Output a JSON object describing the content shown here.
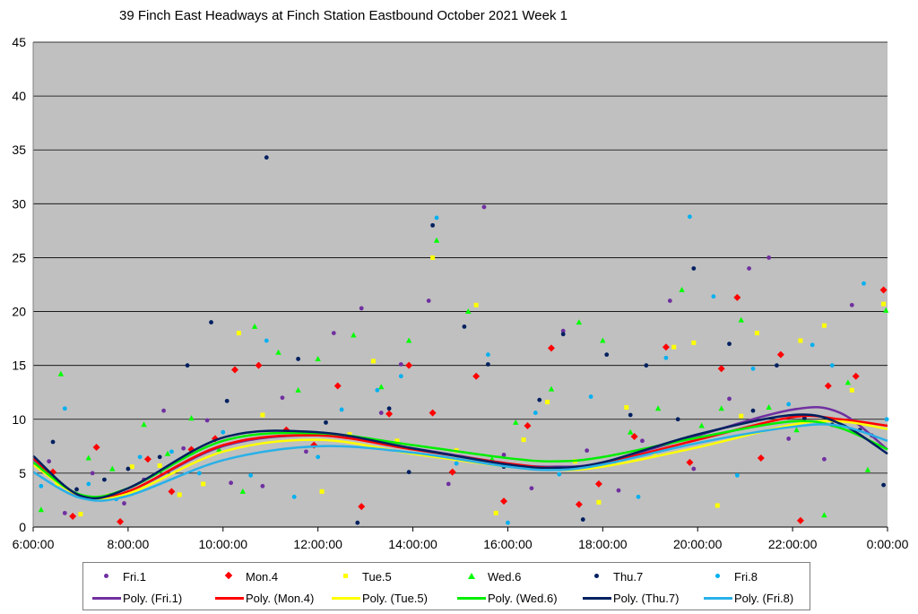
{
  "chart_data": {
    "type": "scatter",
    "title": "39 Finch East Headways at Finch Station Eastbound October 2021  Week 1",
    "xlabel": "",
    "ylabel": "",
    "x_ticks": [
      "6:00:00",
      "8:00:00",
      "10:00:00",
      "12:00:00",
      "14:00:00",
      "16:00:00",
      "18:00:00",
      "20:00:00",
      "22:00:00",
      "0:00:00"
    ],
    "y_ticks": [
      "0",
      "5",
      "10",
      "15",
      "20",
      "25",
      "30",
      "35",
      "40",
      "45"
    ],
    "xlim": [
      "6:00:00",
      "0:00:00"
    ],
    "ylim": [
      0,
      45
    ],
    "grid": true,
    "legend_position": "bottom",
    "plot_background": "#c0c0c0",
    "series": [
      {
        "name": "Fri.1",
        "marker": "circle",
        "color": "#7030a0",
        "points": [
          [
            "6:20",
            6.1
          ],
          [
            "6:40",
            1.3
          ],
          [
            "7:15",
            5.0
          ],
          [
            "7:55",
            2.2
          ],
          [
            "8:20",
            4.4
          ],
          [
            "8:45",
            10.8
          ],
          [
            "9:10",
            7.3
          ],
          [
            "9:40",
            9.9
          ],
          [
            "10:10",
            4.1
          ],
          [
            "10:50",
            3.8
          ],
          [
            "11:15",
            12.0
          ],
          [
            "11:45",
            7.0
          ],
          [
            "12:20",
            18.0
          ],
          [
            "12:55",
            20.3
          ],
          [
            "13:20",
            10.6
          ],
          [
            "13:45",
            15.1
          ],
          [
            "14:20",
            21.0
          ],
          [
            "14:45",
            4.0
          ],
          [
            "15:30",
            29.7
          ],
          [
            "15:55",
            6.7
          ],
          [
            "16:30",
            3.6
          ],
          [
            "17:10",
            18.2
          ],
          [
            "17:40",
            7.1
          ],
          [
            "18:20",
            3.4
          ],
          [
            "18:50",
            8.0
          ],
          [
            "19:25",
            21.0
          ],
          [
            "19:55",
            5.4
          ],
          [
            "20:40",
            11.9
          ],
          [
            "21:05",
            24.0
          ],
          [
            "21:30",
            25.0
          ],
          [
            "21:55",
            8.2
          ],
          [
            "22:40",
            6.3
          ],
          [
            "23:15",
            20.6
          ],
          [
            "23:40",
            8.5
          ]
        ]
      },
      {
        "name": "Mon.4",
        "marker": "diamond",
        "color": "#ff0000",
        "points": [
          [
            "6:25",
            5.1
          ],
          [
            "6:50",
            1.0
          ],
          [
            "7:20",
            7.4
          ],
          [
            "7:50",
            0.5
          ],
          [
            "8:25",
            6.3
          ],
          [
            "8:55",
            3.3
          ],
          [
            "9:20",
            7.2
          ],
          [
            "9:50",
            8.2
          ],
          [
            "10:15",
            14.6
          ],
          [
            "10:45",
            15.0
          ],
          [
            "11:20",
            9.0
          ],
          [
            "11:55",
            7.6
          ],
          [
            "12:25",
            13.1
          ],
          [
            "12:55",
            1.9
          ],
          [
            "13:30",
            10.5
          ],
          [
            "13:55",
            15.0
          ],
          [
            "14:25",
            10.6
          ],
          [
            "14:50",
            5.1
          ],
          [
            "15:20",
            14.0
          ],
          [
            "15:55",
            2.4
          ],
          [
            "16:25",
            9.4
          ],
          [
            "16:55",
            16.6
          ],
          [
            "17:30",
            2.1
          ],
          [
            "17:55",
            4.0
          ],
          [
            "18:40",
            8.4
          ],
          [
            "19:20",
            16.7
          ],
          [
            "19:50",
            6.0
          ],
          [
            "20:30",
            14.7
          ],
          [
            "20:50",
            21.3
          ],
          [
            "21:20",
            6.4
          ],
          [
            "21:45",
            16.0
          ],
          [
            "22:10",
            0.6
          ],
          [
            "22:45",
            13.1
          ],
          [
            "23:20",
            14.0
          ],
          [
            "23:55",
            22.0
          ]
        ]
      },
      {
        "name": "Tue.5",
        "marker": "square",
        "color": "#ffff00",
        "points": [
          [
            "6:30",
            4.0
          ],
          [
            "7:00",
            1.2
          ],
          [
            "7:35",
            2.9
          ],
          [
            "8:05",
            5.6
          ],
          [
            "8:40",
            5.7
          ],
          [
            "9:05",
            3.0
          ],
          [
            "9:35",
            4.0
          ],
          [
            "10:20",
            18.0
          ],
          [
            "10:50",
            10.4
          ],
          [
            "11:40",
            8.7
          ],
          [
            "12:05",
            3.3
          ],
          [
            "12:40",
            8.6
          ],
          [
            "13:10",
            15.4
          ],
          [
            "13:40",
            8.0
          ],
          [
            "14:25",
            25.0
          ],
          [
            "14:55",
            7.1
          ],
          [
            "15:20",
            20.6
          ],
          [
            "15:45",
            1.3
          ],
          [
            "16:20",
            8.1
          ],
          [
            "16:50",
            11.6
          ],
          [
            "17:25",
            6.1
          ],
          [
            "17:55",
            2.3
          ],
          [
            "18:30",
            11.1
          ],
          [
            "19:05",
            6.9
          ],
          [
            "19:30",
            16.7
          ],
          [
            "19:55",
            17.1
          ],
          [
            "20:25",
            2.0
          ],
          [
            "20:55",
            10.3
          ],
          [
            "21:15",
            18.0
          ],
          [
            "22:10",
            17.3
          ],
          [
            "22:40",
            18.7
          ],
          [
            "23:15",
            12.7
          ],
          [
            "23:55",
            20.7
          ]
        ]
      },
      {
        "name": "Wed.6",
        "marker": "triangle",
        "color": "#00ff00",
        "points": [
          [
            "6:10",
            1.6
          ],
          [
            "6:35",
            14.2
          ],
          [
            "7:10",
            6.4
          ],
          [
            "7:40",
            5.4
          ],
          [
            "8:20",
            9.5
          ],
          [
            "8:50",
            6.8
          ],
          [
            "9:20",
            10.1
          ],
          [
            "9:55",
            7.2
          ],
          [
            "10:25",
            3.3
          ],
          [
            "10:40",
            18.6
          ],
          [
            "11:10",
            16.2
          ],
          [
            "11:35",
            12.7
          ],
          [
            "12:00",
            15.6
          ],
          [
            "12:45",
            17.8
          ],
          [
            "13:20",
            13.0
          ],
          [
            "13:55",
            17.3
          ],
          [
            "14:30",
            26.6
          ],
          [
            "15:10",
            20.0
          ],
          [
            "15:40",
            6.3
          ],
          [
            "16:10",
            9.7
          ],
          [
            "16:55",
            12.8
          ],
          [
            "17:30",
            19.0
          ],
          [
            "18:00",
            17.3
          ],
          [
            "18:35",
            8.8
          ],
          [
            "19:10",
            11.0
          ],
          [
            "19:40",
            22.0
          ],
          [
            "20:05",
            9.4
          ],
          [
            "20:30",
            11.0
          ],
          [
            "20:55",
            19.2
          ],
          [
            "21:30",
            11.1
          ],
          [
            "22:05",
            9.0
          ],
          [
            "22:40",
            1.1
          ],
          [
            "23:10",
            13.4
          ],
          [
            "23:35",
            5.3
          ],
          [
            "23:58",
            20.1
          ]
        ]
      },
      {
        "name": "Thu.7",
        "marker": "circle",
        "color": "#002060",
        "points": [
          [
            "6:25",
            7.9
          ],
          [
            "6:55",
            3.5
          ],
          [
            "7:30",
            4.4
          ],
          [
            "8:00",
            5.4
          ],
          [
            "8:40",
            6.5
          ],
          [
            "9:15",
            15.0
          ],
          [
            "9:45",
            19.0
          ],
          [
            "10:05",
            11.7
          ],
          [
            "10:55",
            34.3
          ],
          [
            "11:35",
            15.6
          ],
          [
            "12:10",
            9.7
          ],
          [
            "12:50",
            0.4
          ],
          [
            "13:30",
            11.0
          ],
          [
            "13:55",
            5.1
          ],
          [
            "14:25",
            28.0
          ],
          [
            "15:05",
            18.6
          ],
          [
            "15:35",
            15.1
          ],
          [
            "15:55",
            5.6
          ],
          [
            "16:40",
            11.8
          ],
          [
            "17:10",
            17.9
          ],
          [
            "17:35",
            0.7
          ],
          [
            "18:05",
            16.0
          ],
          [
            "18:35",
            10.4
          ],
          [
            "18:55",
            15.0
          ],
          [
            "19:35",
            10.0
          ],
          [
            "19:55",
            24.0
          ],
          [
            "20:40",
            17.0
          ],
          [
            "21:10",
            10.8
          ],
          [
            "21:40",
            15.0
          ],
          [
            "22:15",
            10.1
          ],
          [
            "22:50",
            9.5
          ],
          [
            "23:25",
            9.0
          ],
          [
            "23:55",
            3.9
          ]
        ]
      },
      {
        "name": "Fri.8",
        "marker": "circle",
        "color": "#00b0f0",
        "points": [
          [
            "6:10",
            3.8
          ],
          [
            "6:40",
            11.0
          ],
          [
            "7:10",
            4.0
          ],
          [
            "7:45",
            2.6
          ],
          [
            "8:15",
            6.5
          ],
          [
            "8:55",
            7.0
          ],
          [
            "9:30",
            5.0
          ],
          [
            "10:00",
            8.8
          ],
          [
            "10:35",
            4.8
          ],
          [
            "10:55",
            17.3
          ],
          [
            "11:30",
            2.8
          ],
          [
            "12:00",
            6.5
          ],
          [
            "12:30",
            10.9
          ],
          [
            "13:15",
            12.7
          ],
          [
            "13:45",
            14.0
          ],
          [
            "14:30",
            28.7
          ],
          [
            "14:55",
            5.9
          ],
          [
            "15:35",
            16.0
          ],
          [
            "16:00",
            0.4
          ],
          [
            "16:35",
            10.6
          ],
          [
            "17:05",
            4.9
          ],
          [
            "17:45",
            12.1
          ],
          [
            "18:15",
            6.1
          ],
          [
            "18:45",
            2.8
          ],
          [
            "19:20",
            15.7
          ],
          [
            "19:50",
            28.8
          ],
          [
            "20:20",
            21.4
          ],
          [
            "20:50",
            4.8
          ],
          [
            "21:10",
            14.7
          ],
          [
            "21:55",
            11.4
          ],
          [
            "22:25",
            16.9
          ],
          [
            "22:50",
            15.0
          ],
          [
            "23:30",
            22.6
          ],
          [
            "23:59",
            10.0
          ]
        ]
      }
    ],
    "trendlines": [
      {
        "name": "Poly. (Fri.1)",
        "series": "Fri.1",
        "color": "#7030a0",
        "points": [
          [
            "6:00",
            6.3
          ],
          [
            "7:00",
            2.9
          ],
          [
            "8:00",
            3.3
          ],
          [
            "10:00",
            7.5
          ],
          [
            "12:00",
            8.5
          ],
          [
            "14:00",
            7.3
          ],
          [
            "16:00",
            5.9
          ],
          [
            "17:00",
            5.6
          ],
          [
            "18:00",
            6.0
          ],
          [
            "20:00",
            8.5
          ],
          [
            "22:00",
            10.9
          ],
          [
            "23:00",
            10.6
          ],
          [
            "0:00",
            7.2
          ]
        ]
      },
      {
        "name": "Poly. (Mon.4)",
        "series": "Mon.4",
        "color": "#ff0000",
        "points": [
          [
            "6:00",
            6.4
          ],
          [
            "7:00",
            2.8
          ],
          [
            "8:00",
            3.3
          ],
          [
            "10:00",
            7.6
          ],
          [
            "12:00",
            8.5
          ],
          [
            "14:00",
            7.2
          ],
          [
            "16:00",
            5.9
          ],
          [
            "17:00",
            5.5
          ],
          [
            "18:00",
            5.9
          ],
          [
            "20:00",
            8.1
          ],
          [
            "22:00",
            10.2
          ],
          [
            "23:00",
            10.0
          ],
          [
            "0:00",
            9.4
          ]
        ]
      },
      {
        "name": "Poly. (Tue.5)",
        "series": "Tue.5",
        "color": "#ffff00",
        "points": [
          [
            "6:00",
            5.8
          ],
          [
            "7:00",
            2.9
          ],
          [
            "8:00",
            3.1
          ],
          [
            "10:00",
            7.0
          ],
          [
            "12:00",
            8.1
          ],
          [
            "14:00",
            6.8
          ],
          [
            "16:00",
            5.6
          ],
          [
            "17:00",
            5.3
          ],
          [
            "18:00",
            5.6
          ],
          [
            "20:00",
            7.4
          ],
          [
            "22:00",
            9.5
          ],
          [
            "23:00",
            9.8
          ],
          [
            "0:00",
            9.1
          ]
        ]
      },
      {
        "name": "Poly. (Wed.6)",
        "series": "Wed.6",
        "color": "#00ee00",
        "points": [
          [
            "6:00",
            6.0
          ],
          [
            "7:00",
            3.0
          ],
          [
            "8:00",
            3.6
          ],
          [
            "10:00",
            8.0
          ],
          [
            "12:00",
            8.7
          ],
          [
            "14:00",
            7.6
          ],
          [
            "16:00",
            6.4
          ],
          [
            "17:00",
            6.1
          ],
          [
            "18:00",
            6.5
          ],
          [
            "20:00",
            8.3
          ],
          [
            "22:00",
            9.8
          ],
          [
            "23:00",
            9.2
          ],
          [
            "0:00",
            7.2
          ]
        ]
      },
      {
        "name": "Poly. (Thu.7)",
        "series": "Thu.7",
        "color": "#002060",
        "points": [
          [
            "6:00",
            6.6
          ],
          [
            "7:00",
            2.9
          ],
          [
            "8:00",
            3.6
          ],
          [
            "10:00",
            8.3
          ],
          [
            "12:00",
            8.8
          ],
          [
            "14:00",
            7.3
          ],
          [
            "16:00",
            5.8
          ],
          [
            "17:00",
            5.5
          ],
          [
            "18:00",
            6.0
          ],
          [
            "20:00",
            8.6
          ],
          [
            "22:00",
            10.4
          ],
          [
            "23:00",
            9.6
          ],
          [
            "0:00",
            6.8
          ]
        ]
      },
      {
        "name": "Poly. (Fri.8)",
        "series": "Fri.8",
        "color": "#2ab0e8",
        "points": [
          [
            "6:00",
            5.1
          ],
          [
            "7:00",
            2.7
          ],
          [
            "8:00",
            2.9
          ],
          [
            "10:00",
            6.2
          ],
          [
            "12:00",
            7.5
          ],
          [
            "14:00",
            6.9
          ],
          [
            "16:00",
            5.6
          ],
          [
            "17:00",
            5.3
          ],
          [
            "18:00",
            5.8
          ],
          [
            "20:00",
            7.8
          ],
          [
            "22:00",
            9.3
          ],
          [
            "23:00",
            9.4
          ],
          [
            "0:00",
            8.0
          ]
        ]
      }
    ]
  }
}
